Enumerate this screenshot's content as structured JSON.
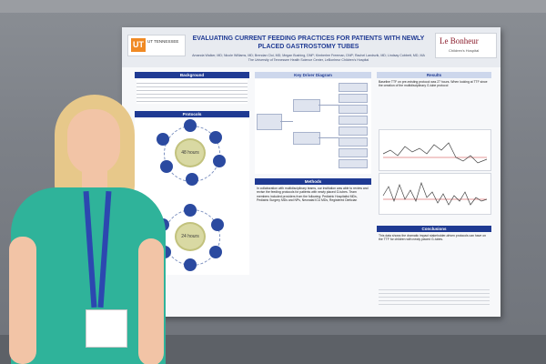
{
  "poster": {
    "title": "EVALUATING CURRENT FEEDING PRACTICES FOR PATIENTS WITH NEWLY PLACED GASTROSTOMY TUBES",
    "authors": "Amanda Walker, MD; Nicole Williams, MD; Brendan Cloi, MD; Megan Bushing, DNP; Kimberlee Freeman, DNP; Rachel Landsvik, MD; Lindsay Cobbett, MD, MA",
    "affiliation": "The University of Tennessee Health Science Center, LeBonheur Children's Hospital",
    "logo_left_text": "UT TENNESSEE",
    "logo_left_mark": "UT",
    "logo_right_name": "Le Bonheur",
    "logo_right_sub": "Children's Hospital",
    "sections": {
      "background": "Background",
      "protocols": "Protocols",
      "key_driver": "Key Driver Diagram",
      "methods": "Methods",
      "results": "Results",
      "conclusions": "Conclusions"
    },
    "protocol_labels": {
      "top": "48 hours",
      "bottom": "24 hours"
    },
    "methods_text": "In collaboration with multidisciplinary teams, our institution was able to review and revise the feeding protocols for patients with newly placed G-tubes. Team members included providers from the following: Pediatric Hospitalist MDs, Pediatric Surgery MDs and NPs, Neonatal ICU MDs, Registered Dietician",
    "results_text": "Baseline TTF on pre-existing protocol was 27 hours. When looking at TTF since the creation of the multidisciplinary G-tube protocol",
    "conclusions_text": "This data shows the dramatic impact stakeholder-driven protocols can have on the TTF for children with newly placed G-tubes."
  }
}
